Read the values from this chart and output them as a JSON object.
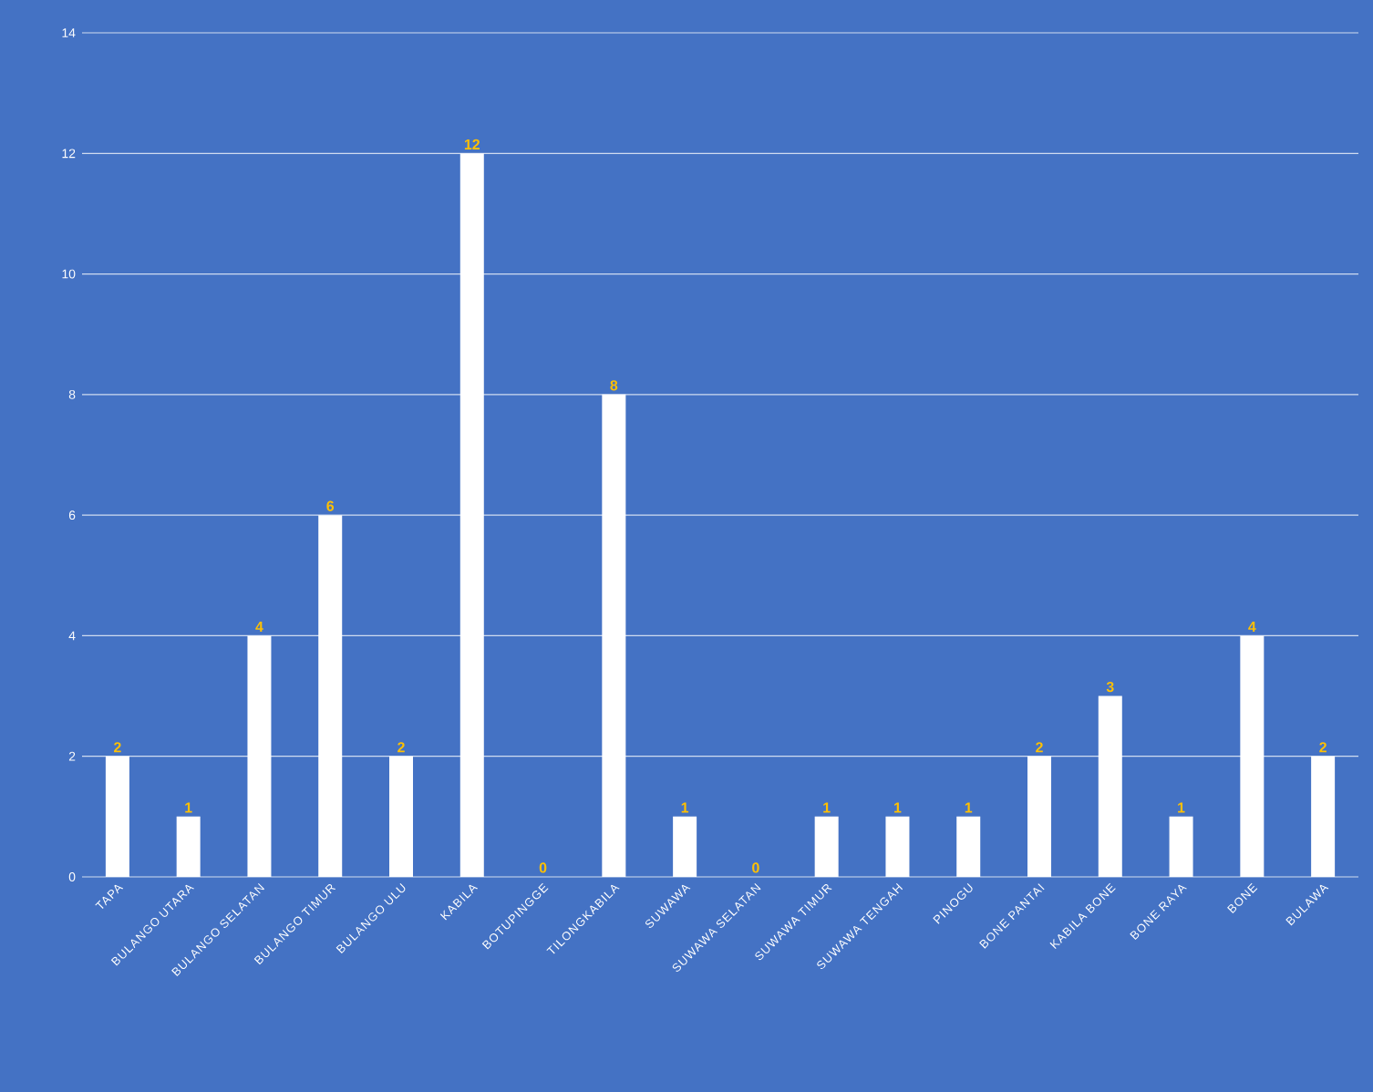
{
  "chart_data": {
    "type": "bar",
    "categories": [
      "TAPA",
      "BULANGO UTARA",
      "BULANGO SELATAN",
      "BULANGO TIMUR",
      "BULANGO ULU",
      "KABILA",
      "BOTUPINGGE",
      "TILONGKABILA",
      "SUWAWA",
      "SUWAWA SELATAN",
      "SUWAWA TIMUR",
      "SUWAWA TENGAH",
      "PINOGU",
      "BONE PANTAI",
      "KABILA BONE",
      "BONE RAYA",
      "BONE",
      "BULAWA"
    ],
    "values": [
      2,
      1,
      4,
      6,
      2,
      12,
      0,
      8,
      1,
      0,
      1,
      1,
      1,
      2,
      3,
      1,
      4,
      2
    ],
    "color": "#ffffff",
    "ylim": [
      0,
      14
    ],
    "yticks": [
      0,
      2,
      4,
      6,
      8,
      10,
      12,
      14
    ],
    "grid": "y",
    "data_labels": true
  }
}
